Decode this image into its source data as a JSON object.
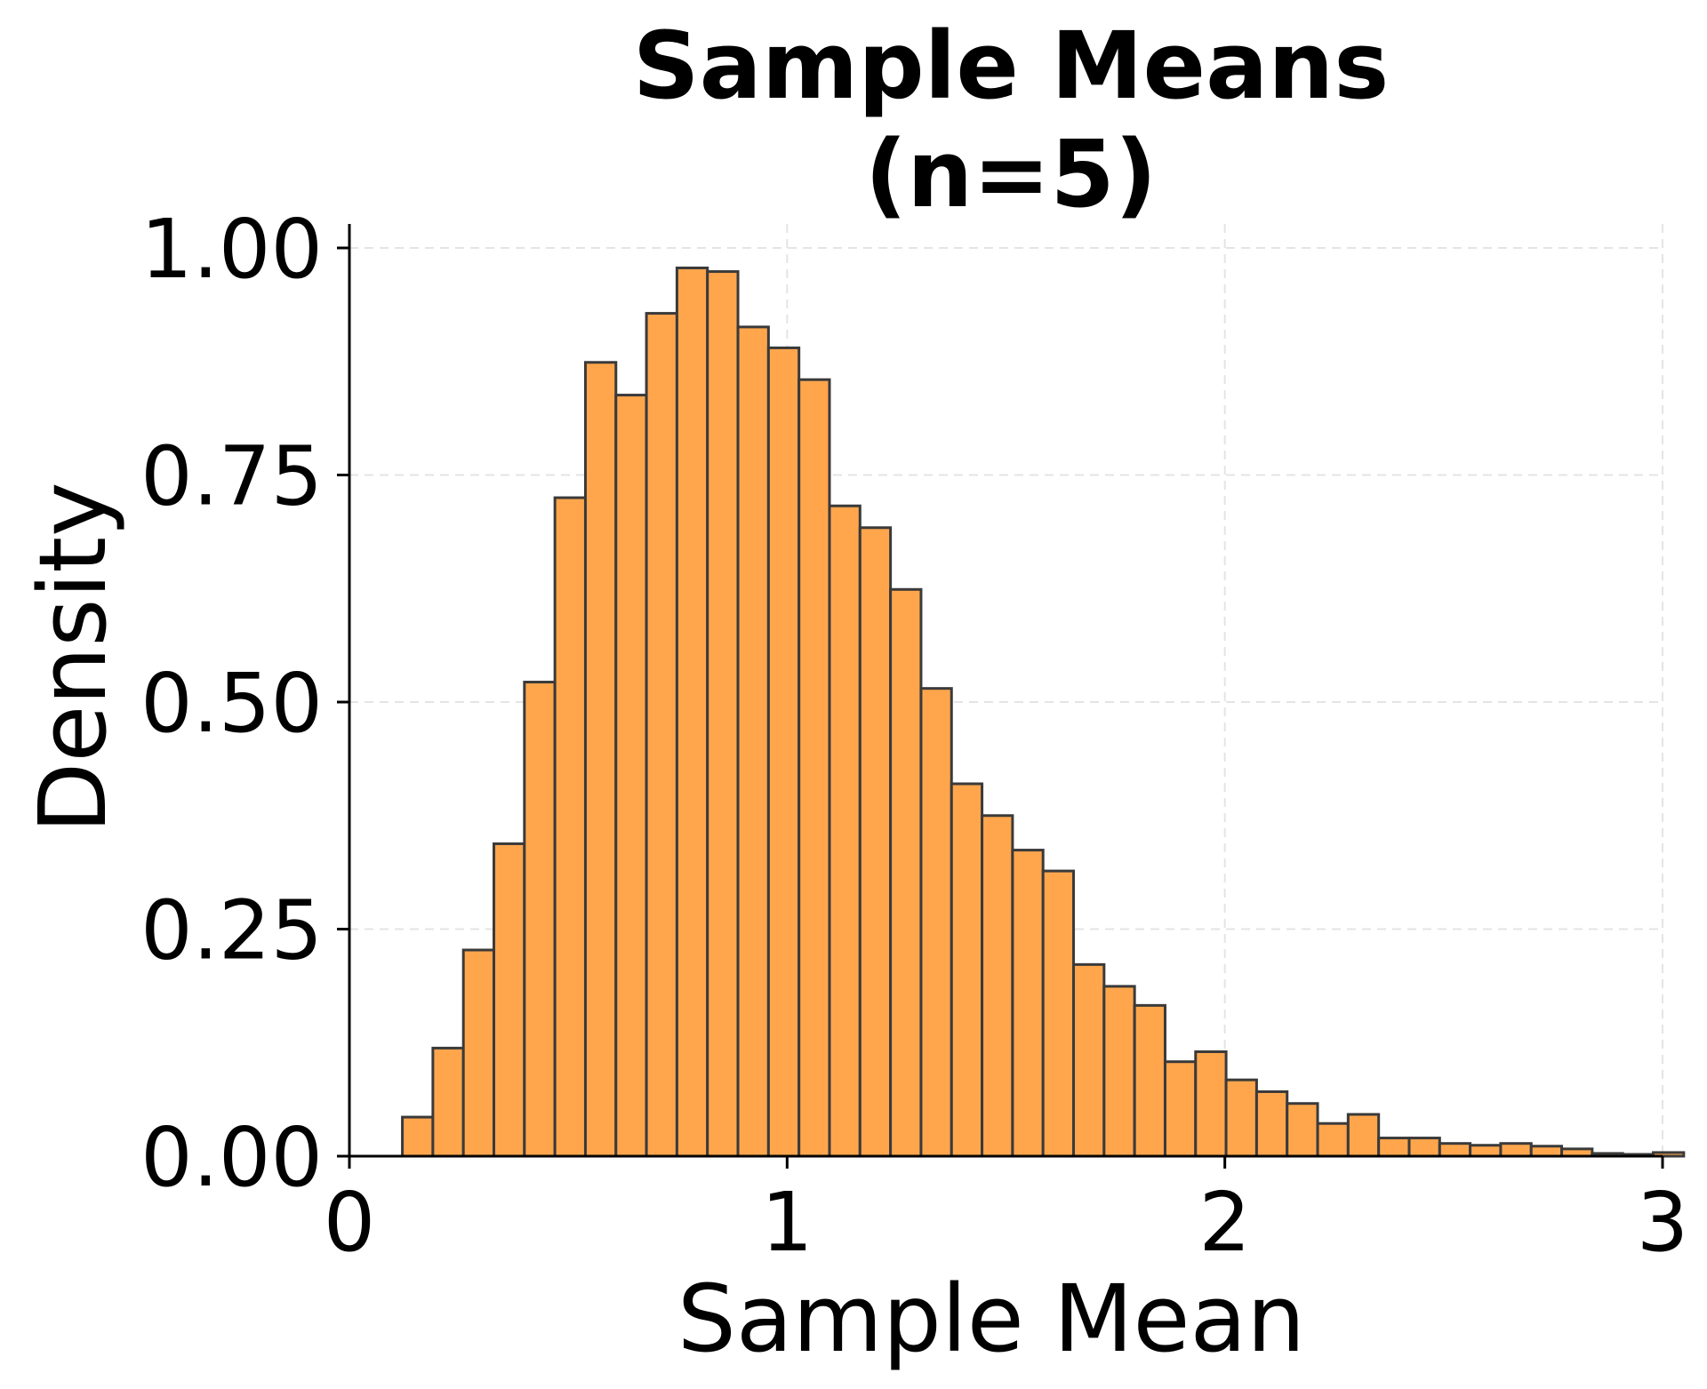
{
  "chart_data": {
    "type": "bar",
    "title": [
      "Sample Means",
      "(n=5)"
    ],
    "xlabel": "Sample Mean",
    "ylabel": "Density",
    "xlim": [
      0,
      3
    ],
    "ylim": [
      0,
      1.0
    ],
    "x_ticks": [
      0,
      1,
      2,
      3
    ],
    "x_tick_labels": [
      "0",
      "1",
      "2",
      "3"
    ],
    "y_ticks": [
      0,
      0.25,
      0.5,
      0.75,
      1.0
    ],
    "y_tick_labels": [
      "0.00",
      "0.25",
      "0.50",
      "0.75",
      "1.00"
    ],
    "grid": true,
    "bar_color": "#ffa64d",
    "edge_color": "#3a3a3a",
    "bin_start": 0.121,
    "bin_width": 0.0697,
    "values": [
      0.043,
      0.119,
      0.227,
      0.344,
      0.522,
      0.725,
      0.874,
      0.838,
      0.928,
      0.978,
      0.974,
      0.913,
      0.89,
      0.855,
      0.716,
      0.692,
      0.624,
      0.515,
      0.41,
      0.375,
      0.337,
      0.314,
      0.211,
      0.187,
      0.166,
      0.104,
      0.115,
      0.084,
      0.071,
      0.058,
      0.036,
      0.046,
      0.02,
      0.02,
      0.014,
      0.012,
      0.014,
      0.011,
      0.008,
      0.003,
      0.002,
      0.004
    ]
  }
}
